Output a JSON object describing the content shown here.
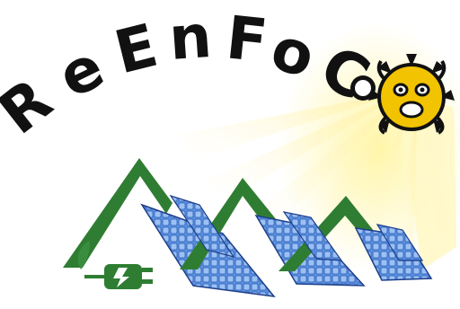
{
  "logo": {
    "letters": [
      "R",
      "e",
      "E",
      "n",
      "F",
      "o",
      "C"
    ],
    "wordmark": "ReEnFoCo"
  },
  "icons": {
    "sun": "taino-coqui-sun-icon",
    "plug": "electric-plug-icon",
    "leaf": "leaf-icon",
    "bolt": "lightning-bolt-icon"
  },
  "colors": {
    "text": "#111111",
    "sun_body": "#f2c300",
    "sun_glow": "#fff3a6",
    "mountain_green": "#2f7d32",
    "panel_blue": "#3f7fd4",
    "panel_light": "#a8c8f0",
    "plug_green": "#2e7d32"
  }
}
